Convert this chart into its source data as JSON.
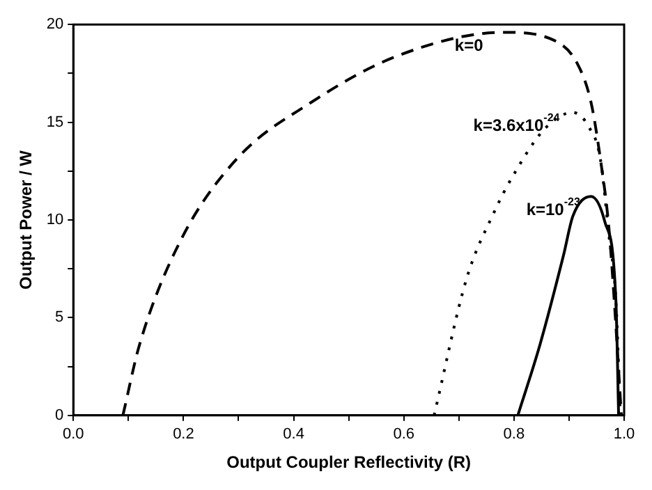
{
  "chart_data": {
    "type": "line",
    "xlabel": "Output Coupler Reflectivity (R)",
    "ylabel": "Output Power / W",
    "xlim": [
      0,
      1
    ],
    "ylim": [
      0,
      20
    ],
    "xticks": [
      {
        "value": 0,
        "label": "0.0"
      },
      {
        "value": 0.1,
        "label": null
      },
      {
        "value": 0.2,
        "label": "0.2"
      },
      {
        "value": 0.3,
        "label": null
      },
      {
        "value": 0.4,
        "label": "0.4"
      },
      {
        "value": 0.5,
        "label": null
      },
      {
        "value": 0.6,
        "label": "0.6"
      },
      {
        "value": 0.7,
        "label": null
      },
      {
        "value": 0.8,
        "label": "0.8"
      },
      {
        "value": 0.9,
        "label": null
      },
      {
        "value": 1,
        "label": "1.0"
      }
    ],
    "yticks": [
      0,
      {
        "value": 2.5,
        "label": null
      },
      5,
      {
        "value": 7.5,
        "label": null
      },
      10,
      {
        "value": 12.5,
        "label": null
      },
      15,
      {
        "value": 17.5,
        "label": null
      },
      20
    ],
    "grid": false,
    "legend": false,
    "marker": "none",
    "series": [
      {
        "name": "k=0",
        "color": "#000000",
        "line_style": "dashed",
        "x": [
          0.09,
          0.12,
          0.193,
          0.296,
          0.431,
          0.589,
          0.782,
          0.872,
          0.915,
          0.94,
          0.957,
          0.972,
          0.982,
          0.995
        ],
        "values": [
          0,
          3.6,
          8.85,
          13.1,
          16.0,
          18.4,
          19.6,
          19.2,
          18.0,
          16.0,
          13.1,
          9.7,
          5.9,
          0
        ]
      },
      {
        "name": "k=3.6x10$^{-24}$",
        "color": "#000000",
        "line_style": "dotted",
        "x": [
          0.655,
          0.714,
          0.764,
          0.797,
          0.857,
          0.907,
          0.935,
          0.957,
          0.972,
          0.985,
          0.993
        ],
        "values": [
          0,
          7.0,
          10.4,
          12.2,
          14.7,
          15.5,
          14.8,
          13.1,
          9.3,
          5.9,
          0
        ]
      },
      {
        "name": "k=10$^{-23}$",
        "color": "#000000",
        "line_style": "solid",
        "x": [
          0.807,
          0.847,
          0.89,
          0.907,
          0.94,
          0.965,
          0.985,
          0.99
        ],
        "values": [
          0,
          3.6,
          8.2,
          10.2,
          11.2,
          9.9,
          5.9,
          0
        ]
      }
    ]
  }
}
